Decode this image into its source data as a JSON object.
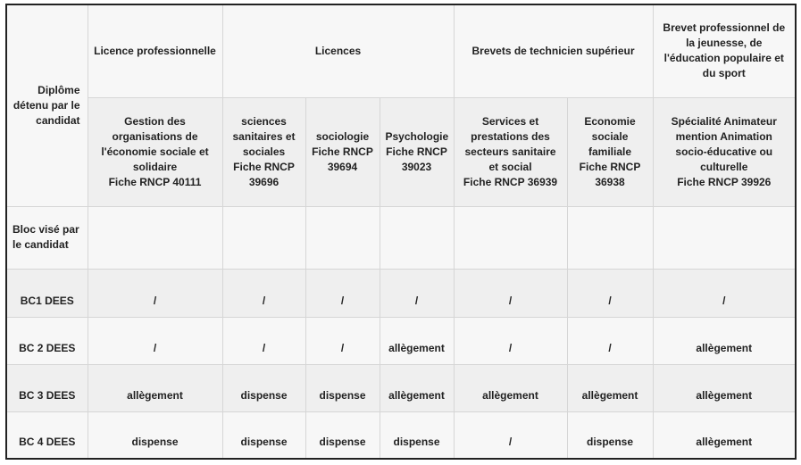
{
  "header": {
    "corner_label": "Diplôme détenu par le candidat",
    "groups": [
      "Licence professionnelle",
      "Licences",
      "Brevets de technicien supérieur",
      "Brevet professionnel de la jeunesse, de l'éducation populaire et du sport"
    ],
    "diplomas": [
      [
        "Gestion des organisations de l'économie sociale et solidaire",
        "Fiche RNCP 40111"
      ],
      [
        "sciences sanitaires et sociales",
        "Fiche RNCP 39696"
      ],
      [
        "sociologie",
        "Fiche RNCP 39694"
      ],
      [
        "Psychologie",
        "Fiche RNCP 39023"
      ],
      [
        "Services et prestations des secteurs sanitaire et social",
        "Fiche RNCP 36939"
      ],
      [
        "Economie sociale familiale",
        "Fiche RNCP 36938"
      ],
      [
        "Spécialité Animateur mention Animation socio-éducative ou culturelle",
        "Fiche RNCP 39926"
      ]
    ]
  },
  "bloc_label": "Bloc visé par le candidat",
  "rows": [
    {
      "label": "BC1 DEES",
      "values": [
        "/",
        "/",
        "/",
        "/",
        "/",
        "/",
        "/"
      ]
    },
    {
      "label": "BC 2 DEES",
      "values": [
        "/",
        "/",
        "/",
        "allègement",
        "/",
        "/",
        "allègement"
      ]
    },
    {
      "label": "BC 3 DEES",
      "values": [
        "allègement",
        "dispense",
        "dispense",
        "allègement",
        "allègement",
        "allègement",
        "allègement"
      ]
    },
    {
      "label": "BC 4 DEES",
      "values": [
        "dispense",
        "dispense",
        "dispense",
        "dispense",
        "/",
        "dispense",
        "allègement"
      ]
    }
  ]
}
